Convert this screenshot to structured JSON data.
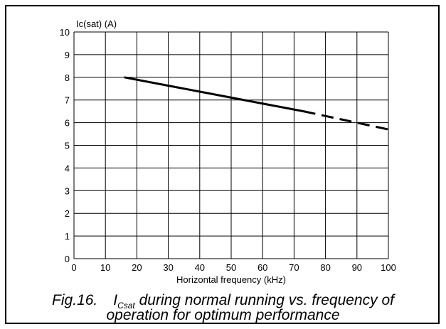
{
  "chart_data": {
    "type": "line",
    "title": "",
    "xlabel": "Horizontal frequency (kHz)",
    "ylabel": "Ic(sat) (A)",
    "xlim": [
      0,
      100
    ],
    "ylim": [
      0,
      10
    ],
    "x_ticks": [
      "0",
      "10",
      "20",
      "30",
      "40",
      "50",
      "60",
      "70",
      "80",
      "90",
      "100"
    ],
    "y_ticks": [
      "0",
      "1",
      "2",
      "3",
      "4",
      "5",
      "6",
      "7",
      "8",
      "9",
      "10"
    ],
    "grid": true,
    "series": [
      {
        "style": "solid",
        "x": [
          16,
          73
        ],
        "y": [
          8.0,
          6.5
        ]
      },
      {
        "style": "dashed",
        "x": [
          73,
          100
        ],
        "y": [
          6.5,
          5.7
        ]
      }
    ]
  },
  "caption": {
    "fig_number": "Fig.16.",
    "symbol_main": "I",
    "symbol_sub": "Csat",
    "line1_rest": " during normal running vs. frequency of",
    "line2": "operation for optimum performance"
  }
}
